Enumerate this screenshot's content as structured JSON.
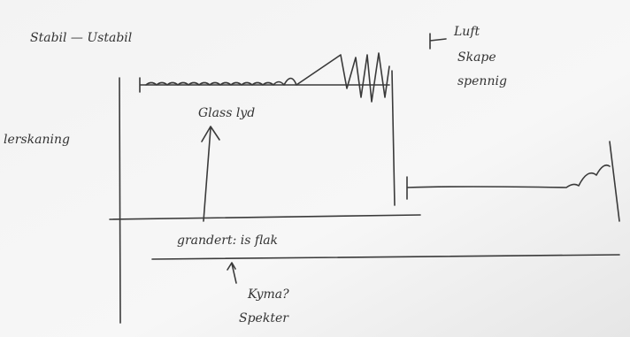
{
  "notes": {
    "stable_unstable": "Stabil — Ustabil",
    "air": "Luft",
    "create": "Skape",
    "tension": "spennig",
    "glass_sound": "Glass lyd",
    "axis_label": "lerskaning",
    "ground_value": "grandert: is flak",
    "question": "Kyma?",
    "spectrum": "Spekter"
  }
}
